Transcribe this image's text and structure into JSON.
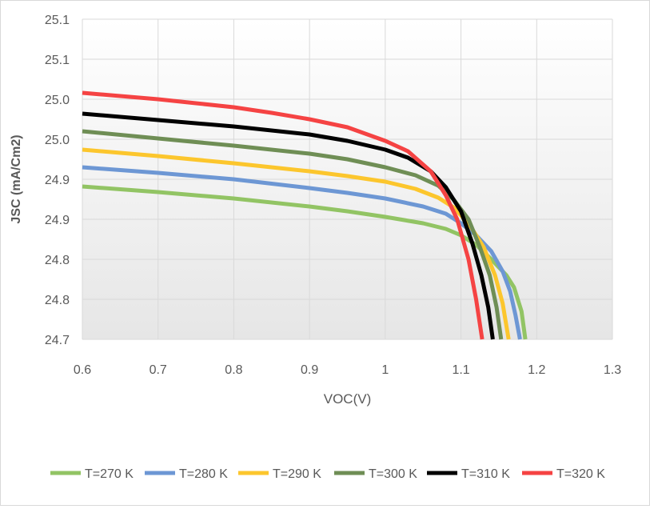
{
  "chart_data": {
    "type": "line",
    "title": "",
    "xlabel": "VOC(V)",
    "ylabel": "JSC (mA/Cm2)",
    "xlim": [
      0.6,
      1.3
    ],
    "ylim": [
      24.7,
      25.1
    ],
    "x_ticks": [
      0.6,
      0.7,
      0.8,
      0.9,
      1.0,
      1.1,
      1.2,
      1.3
    ],
    "x_tick_labels": [
      "0.6",
      "0.7",
      "0.8",
      "0.9",
      "1",
      "1.1",
      "1.2",
      "1.3"
    ],
    "y_ticks": [
      24.7,
      24.75,
      24.8,
      24.85,
      24.9,
      24.95,
      25.0,
      25.05,
      25.1
    ],
    "y_tick_labels": [
      "24.7",
      "24.8",
      "24.8",
      "24.9",
      "24.9",
      "25.0",
      "25.0",
      "25.1",
      "25.1"
    ],
    "grid": true,
    "legend_position": "bottom",
    "series": [
      {
        "name": "T=270 K",
        "color": "#92c464",
        "x": [
          0.6,
          0.7,
          0.8,
          0.9,
          0.95,
          1.0,
          1.05,
          1.08,
          1.1,
          1.12,
          1.14,
          1.16,
          1.17,
          1.18,
          1.185
        ],
        "y": [
          24.891,
          24.884,
          24.876,
          24.866,
          24.86,
          24.853,
          24.845,
          24.838,
          24.83,
          24.818,
          24.8,
          24.78,
          24.765,
          24.735,
          24.7
        ]
      },
      {
        "name": "T=280 K",
        "color": "#6d97d4",
        "x": [
          0.6,
          0.7,
          0.8,
          0.9,
          0.95,
          1.0,
          1.05,
          1.08,
          1.1,
          1.12,
          1.14,
          1.155,
          1.165,
          1.172,
          1.178
        ],
        "y": [
          24.915,
          24.908,
          24.9,
          24.889,
          24.883,
          24.876,
          24.866,
          24.857,
          24.845,
          24.83,
          24.81,
          24.785,
          24.76,
          24.73,
          24.7
        ]
      },
      {
        "name": "T=290 K",
        "color": "#fcc62d",
        "x": [
          0.6,
          0.7,
          0.8,
          0.9,
          0.95,
          1.0,
          1.04,
          1.07,
          1.09,
          1.11,
          1.13,
          1.145,
          1.155,
          1.163
        ],
        "y": [
          24.937,
          24.929,
          24.92,
          24.91,
          24.904,
          24.897,
          24.888,
          24.877,
          24.865,
          24.845,
          24.815,
          24.78,
          24.745,
          24.7
        ]
      },
      {
        "name": "T=300 K",
        "color": "#6f8e55",
        "x": [
          0.6,
          0.7,
          0.8,
          0.9,
          0.95,
          1.0,
          1.04,
          1.07,
          1.09,
          1.11,
          1.125,
          1.138,
          1.147,
          1.153
        ],
        "y": [
          24.96,
          24.951,
          24.942,
          24.932,
          24.925,
          24.915,
          24.905,
          24.892,
          24.875,
          24.85,
          24.815,
          24.78,
          24.74,
          24.7
        ]
      },
      {
        "name": "T=310 K",
        "color": "#000000",
        "x": [
          0.6,
          0.7,
          0.8,
          0.9,
          0.95,
          1.0,
          1.03,
          1.06,
          1.08,
          1.1,
          1.115,
          1.127,
          1.136,
          1.142
        ],
        "y": [
          24.982,
          24.974,
          24.966,
          24.956,
          24.948,
          24.937,
          24.927,
          24.91,
          24.89,
          24.86,
          24.82,
          24.78,
          24.74,
          24.7
        ]
      },
      {
        "name": "T=320 K",
        "color": "#f54343",
        "x": [
          0.6,
          0.7,
          0.75,
          0.8,
          0.85,
          0.9,
          0.95,
          1.0,
          1.03,
          1.06,
          1.08,
          1.095,
          1.11,
          1.12,
          1.128
        ],
        "y": [
          25.008,
          25.0,
          24.995,
          24.99,
          24.983,
          24.975,
          24.965,
          24.948,
          24.935,
          24.91,
          24.88,
          24.85,
          24.8,
          24.75,
          24.7
        ]
      }
    ]
  }
}
